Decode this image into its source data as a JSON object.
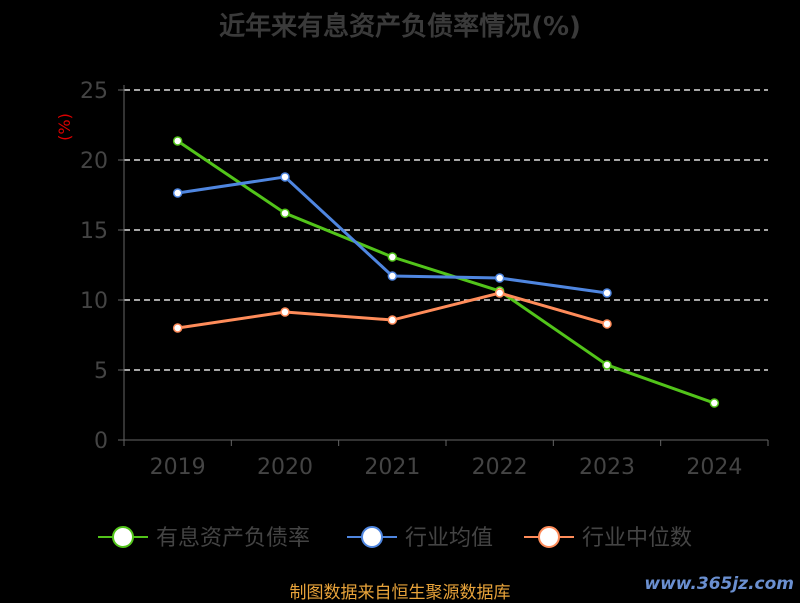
{
  "chart_data": {
    "type": "line",
    "title": "近年来有息资产负债率情况(%)",
    "ylabel": "(%)",
    "xlabel": "",
    "categories": [
      "2019",
      "2020",
      "2021",
      "2022",
      "2023",
      "2024"
    ],
    "ylim": [
      0,
      25
    ],
    "yticks": [
      0,
      5,
      10,
      15,
      20,
      25
    ],
    "grid": true,
    "legend_position": "bottom",
    "series": [
      {
        "name": "有息资产负债率",
        "color": "#52c41a",
        "values": [
          21.36,
          16.2,
          13.07,
          10.64,
          5.36,
          2.64
        ]
      },
      {
        "name": "行业均值",
        "color": "#4f86e0",
        "values": [
          17.64,
          18.79,
          11.71,
          11.57,
          10.5,
          null
        ]
      },
      {
        "name": "行业中位数",
        "color": "#ff8c5a",
        "values": [
          8.0,
          9.14,
          8.57,
          10.5,
          8.29,
          null
        ]
      }
    ]
  },
  "footer": {
    "source": "制图数据来自恒生聚源数据库",
    "watermark": "www.365jz.com"
  }
}
